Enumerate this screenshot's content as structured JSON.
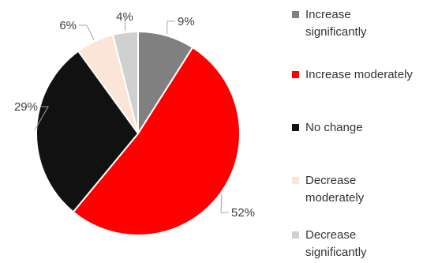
{
  "chart_data": {
    "type": "pie",
    "slices": [
      {
        "label": "Increase significantly",
        "value": 9,
        "display": "9%",
        "color": "#808080"
      },
      {
        "label": "Increase moderately",
        "value": 52,
        "display": "52%",
        "color": "#ff0000"
      },
      {
        "label": "No change",
        "value": 29,
        "display": "29%",
        "color": "#111111"
      },
      {
        "label": "Decrease moderately",
        "value": 6,
        "display": "6%",
        "color": "#fbe5d6"
      },
      {
        "label": "Decrease significantly",
        "value": 4,
        "display": "4%",
        "color": "#d0d0d0"
      }
    ],
    "start": "12 o'clock",
    "direction": "clockwise",
    "legend_position": "right"
  },
  "legend": {
    "items": [
      {
        "line1": "Increase",
        "line2": "significantly"
      },
      {
        "line1": "Increase moderately",
        "line2": ""
      },
      {
        "line1": "No change",
        "line2": ""
      },
      {
        "line1": "Decrease",
        "line2": "moderately"
      },
      {
        "line1": "Decrease",
        "line2": "significantly"
      }
    ]
  }
}
